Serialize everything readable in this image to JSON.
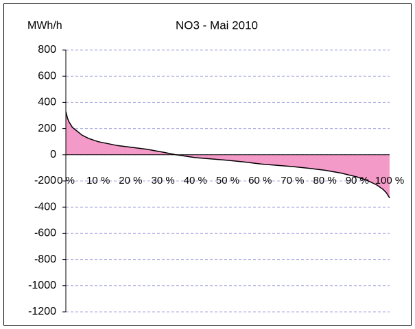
{
  "chart_data": {
    "type": "area",
    "title": "NO3 - Mai 2010",
    "y_label": "MWh/h",
    "x": [
      0,
      0.5,
      1,
      2,
      3,
      5,
      7,
      10,
      13,
      16,
      20,
      25,
      30,
      34,
      40,
      45,
      50,
      55,
      60,
      65,
      70,
      75,
      80,
      85,
      90,
      93,
      96,
      98,
      99,
      100
    ],
    "series": [
      {
        "name": "NO3",
        "color": "#f49ac8",
        "values": [
          330,
          280,
          250,
          210,
          190,
          150,
          125,
          100,
          85,
          70,
          58,
          42,
          20,
          0,
          -22,
          -32,
          -42,
          -55,
          -70,
          -80,
          -90,
          -103,
          -118,
          -140,
          -170,
          -195,
          -230,
          -265,
          -290,
          -330
        ]
      }
    ],
    "xlim": [
      0,
      100
    ],
    "xticks": [
      {
        "value": 0,
        "label": "0 %"
      },
      {
        "value": 10,
        "label": "10 %"
      },
      {
        "value": 20,
        "label": "20 %"
      },
      {
        "value": 30,
        "label": "30 %"
      },
      {
        "value": 40,
        "label": "40 %"
      },
      {
        "value": 50,
        "label": "50 %"
      },
      {
        "value": 60,
        "label": "60 %"
      },
      {
        "value": 70,
        "label": "70 %"
      },
      {
        "value": 80,
        "label": "80 %"
      },
      {
        "value": 90,
        "label": "90 %"
      },
      {
        "value": 100,
        "label": "100 %"
      }
    ],
    "ylim": [
      -1200,
      800
    ],
    "yticks": [
      -1200,
      -1000,
      -800,
      -600,
      -400,
      -200,
      0,
      200,
      400,
      600,
      800
    ],
    "grid": true
  }
}
